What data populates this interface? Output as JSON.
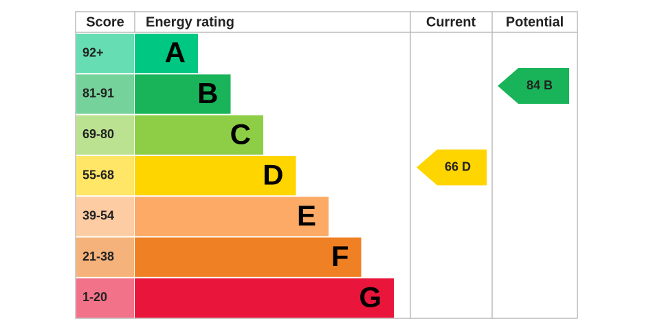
{
  "header": {
    "score": "Score",
    "rating": "Energy rating",
    "current": "Current",
    "potential": "Potential"
  },
  "bands": [
    {
      "score": "92+",
      "letter": "A",
      "color": "#00c781"
    },
    {
      "score": "81-91",
      "letter": "B",
      "color": "#19b459"
    },
    {
      "score": "69-80",
      "letter": "C",
      "color": "#8dce46"
    },
    {
      "score": "55-68",
      "letter": "D",
      "color": "#ffd500"
    },
    {
      "score": "39-54",
      "letter": "E",
      "color": "#fcaa65"
    },
    {
      "score": "21-38",
      "letter": "F",
      "color": "#ef8023"
    },
    {
      "score": "1-20",
      "letter": "G",
      "color": "#e9153b"
    }
  ],
  "current": {
    "score": 66,
    "letter": "D"
  },
  "potential": {
    "score": 84,
    "letter": "B"
  }
}
